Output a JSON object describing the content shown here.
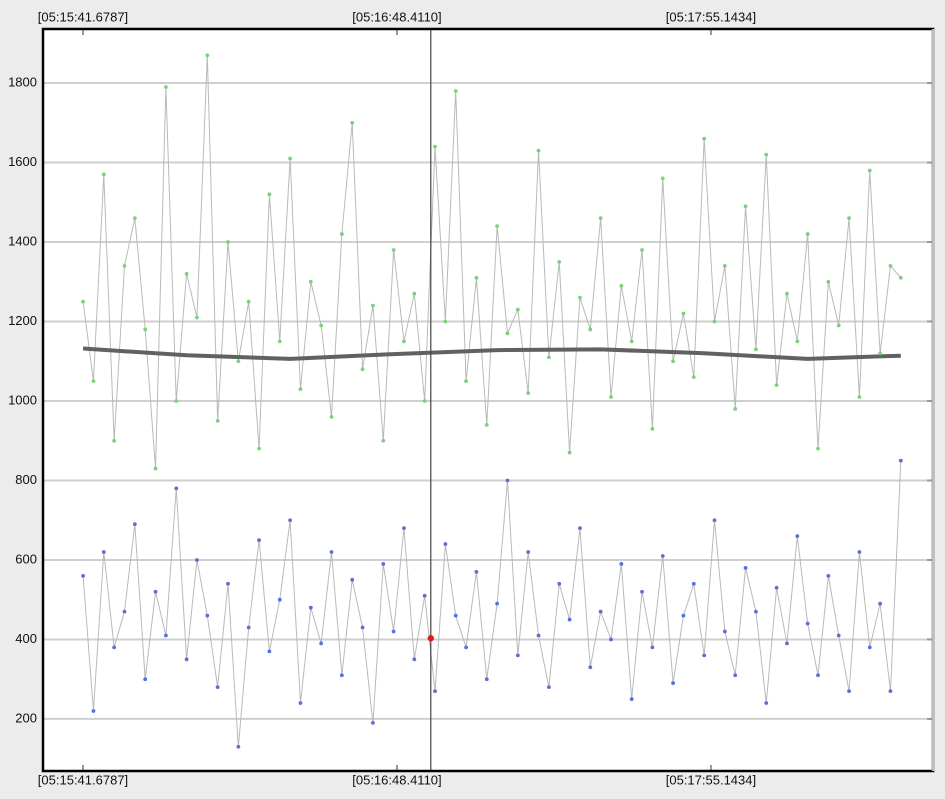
{
  "chart_data": {
    "type": "line",
    "x": [
      18941.7,
      18943.9,
      18946.1,
      18948.3,
      18950.5,
      18952.7,
      18954.9,
      18957.1,
      18959.3,
      18961.5,
      18963.7,
      18965.9,
      18968.1,
      18970.3,
      18972.5,
      18974.7,
      18976.9,
      18979.1,
      18981.3,
      18983.5,
      18985.7,
      18987.9,
      18990.1,
      18992.3,
      18994.5,
      18996.7,
      18998.9,
      19001.1,
      19003.3,
      19005.5,
      19007.7,
      19009.9,
      19012.1,
      19014.3,
      19016.5,
      19018.7,
      19020.9,
      19023.1,
      19025.3,
      19027.5,
      19029.7,
      19031.9,
      19034.1,
      19036.3,
      19038.5,
      19040.7,
      19042.9,
      19045.1,
      19047.3,
      19049.5,
      19051.7,
      19053.9,
      19056.1,
      19058.3,
      19060.5,
      19062.7,
      19064.9,
      19067.1,
      19069.3,
      19071.5,
      19073.7,
      19075.9,
      19078.1,
      19080.3,
      19082.5,
      19084.7,
      19086.9,
      19089.1,
      19091.3,
      19093.5,
      19095.7,
      19097.9,
      19100.1,
      19102.3,
      19104.5,
      19106.7,
      19108.9,
      19111.1,
      19113.3,
      19115.5
    ],
    "series": [
      {
        "color": "#7dd07d",
        "line_color": "#b9b9b9",
        "values": [
          1250,
          1050,
          1570,
          900,
          1340,
          1460,
          1180,
          830,
          1790,
          1000,
          1320,
          1210,
          1870,
          950,
          1400,
          1100,
          1250,
          880,
          1520,
          1150,
          1610,
          1030,
          1300,
          1190,
          960,
          1420,
          1700,
          1080,
          1240,
          900,
          1380,
          1150,
          1270,
          1000,
          1640,
          1200,
          1780,
          1050,
          1310,
          940,
          1440,
          1170,
          1230,
          1020,
          1630,
          1110,
          1350,
          870,
          1260,
          1180,
          1460,
          1010,
          1290,
          1150,
          1380,
          930,
          1560,
          1100,
          1220,
          1060,
          1660,
          1200,
          1340,
          980,
          1490,
          1130,
          1620,
          1040,
          1270,
          1150,
          1420,
          880,
          1300,
          1190,
          1460,
          1010,
          1580,
          1120,
          1340,
          1310
        ]
      },
      {
        "color": "#5b6fd8",
        "line_color": "#b9b9b9",
        "values": [
          560,
          220,
          620,
          380,
          470,
          690,
          300,
          520,
          410,
          780,
          350,
          600,
          460,
          280,
          540,
          130,
          430,
          650,
          370,
          500,
          700,
          240,
          480,
          390,
          620,
          310,
          550,
          430,
          190,
          590,
          420,
          680,
          350,
          510,
          270,
          640,
          460,
          380,
          570,
          300,
          490,
          800,
          360,
          620,
          410,
          280,
          540,
          450,
          680,
          330,
          470,
          400,
          590,
          250,
          520,
          380,
          610,
          290,
          460,
          540,
          360,
          700,
          420,
          310,
          580,
          470,
          240,
          530,
          390,
          660,
          440,
          310,
          560,
          410,
          270,
          620,
          380,
          490,
          270,
          850
        ]
      },
      {
        "color": "#616161",
        "line_color": "#616161",
        "width": 4,
        "x": [
          18941.7,
          18963.7,
          18985.7,
          19007.7,
          19029.7,
          19051.7,
          19073.7,
          19095.7,
          19115.5
        ],
        "values": [
          1132,
          1115,
          1106,
          1118,
          1128,
          1130,
          1120,
          1106,
          1114
        ]
      },
      {
        "color": "#e01b1b",
        "x": [
          19015.6
        ],
        "values": [
          403
        ]
      }
    ],
    "cursor_x": 19015.6,
    "xlim": [
      18933.18,
      19122.34
    ],
    "xticks": [
      {
        "value": 18941.6787,
        "label": "[05:15:41.6787]"
      },
      {
        "value": 19008.411,
        "label": "[05:16:48.4110]"
      },
      {
        "value": 19075.1434,
        "label": "[05:17:55.1434]"
      }
    ],
    "ylim": [
      69,
      1936
    ],
    "yticks": [
      200,
      400,
      600,
      800,
      1000,
      1200,
      1400,
      1600,
      1800
    ],
    "grid": true
  }
}
